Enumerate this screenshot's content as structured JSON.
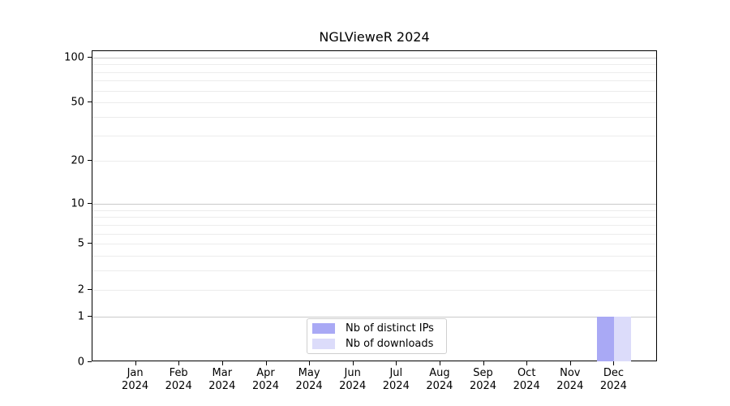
{
  "chart_data": {
    "type": "bar",
    "title": "NGLVieweR 2024",
    "categories": [
      "Jan 2024",
      "Feb 2024",
      "Mar 2024",
      "Apr 2024",
      "May 2024",
      "Jun 2024",
      "Jul 2024",
      "Aug 2024",
      "Sep 2024",
      "Oct 2024",
      "Nov 2024",
      "Dec 2024"
    ],
    "x_tick_line1": [
      "Jan",
      "Feb",
      "Mar",
      "Apr",
      "May",
      "Jun",
      "Jul",
      "Aug",
      "Sep",
      "Oct",
      "Nov",
      "Dec"
    ],
    "x_tick_line2": "2024",
    "series": [
      {
        "name": "Nb of distinct IPs",
        "color": "#a9a9f5",
        "values": [
          0,
          0,
          0,
          0,
          0,
          0,
          0,
          0,
          0,
          0,
          0,
          1
        ]
      },
      {
        "name": "Nb of downloads",
        "color": "#dcdcfa",
        "values": [
          0,
          0,
          0,
          0,
          0,
          0,
          0,
          0,
          0,
          0,
          0,
          1
        ]
      }
    ],
    "yscale": "log1p",
    "ylim": [
      0,
      110
    ],
    "yticks": [
      0,
      1,
      2,
      5,
      10,
      20,
      50,
      100
    ],
    "gridlines_major": [
      1,
      10,
      100
    ],
    "gridlines_minor": [
      2,
      3,
      4,
      5,
      6,
      7,
      8,
      9,
      20,
      30,
      40,
      50,
      60,
      70,
      80,
      90
    ],
    "grid": true,
    "legend_position": "lower center",
    "xlabel": "",
    "ylabel": ""
  },
  "colors": {
    "grid_major": "#c9c9c9",
    "grid_minor": "#ececec",
    "spine": "#000000",
    "text": "#000000",
    "background": "#ffffff"
  }
}
